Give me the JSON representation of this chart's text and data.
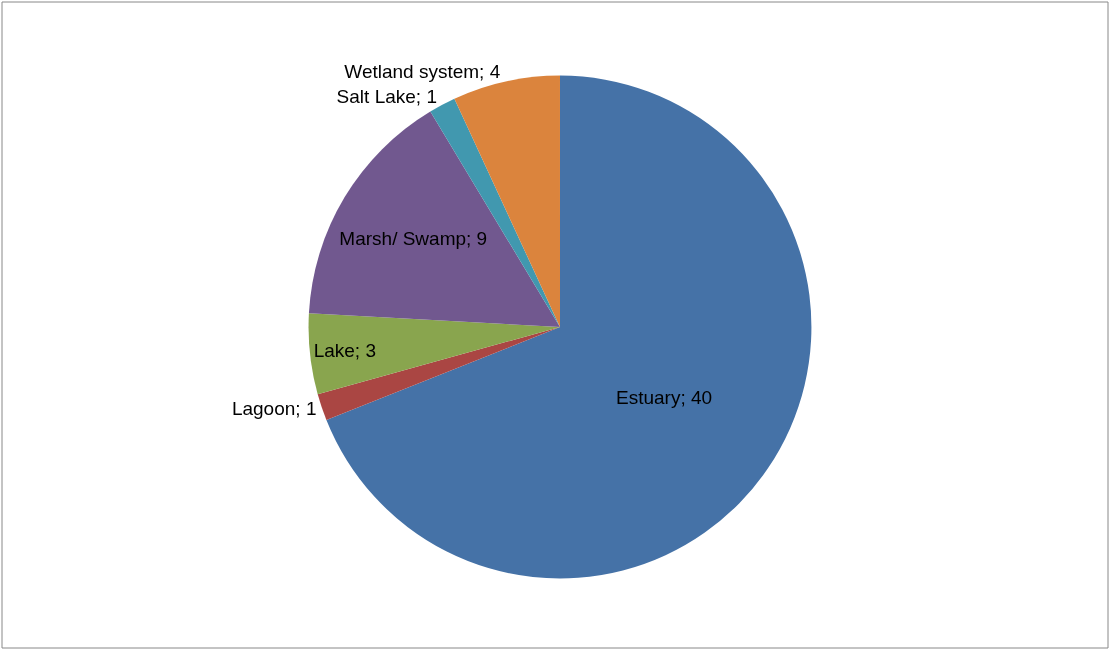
{
  "chart_data": {
    "type": "pie",
    "categories": [
      "Estuary; 40",
      "Lagoon; 1",
      "Lake; 3",
      "Marsh/ Swamp; 9",
      "Salt Lake; 1",
      "Wetland system; 4"
    ],
    "values": [
      40,
      1,
      3,
      9,
      1,
      4
    ],
    "colors": [
      "#4572a7",
      "#aa4643",
      "#89a54e",
      "#71588f",
      "#4198af",
      "#db843d"
    ],
    "legend": false
  }
}
